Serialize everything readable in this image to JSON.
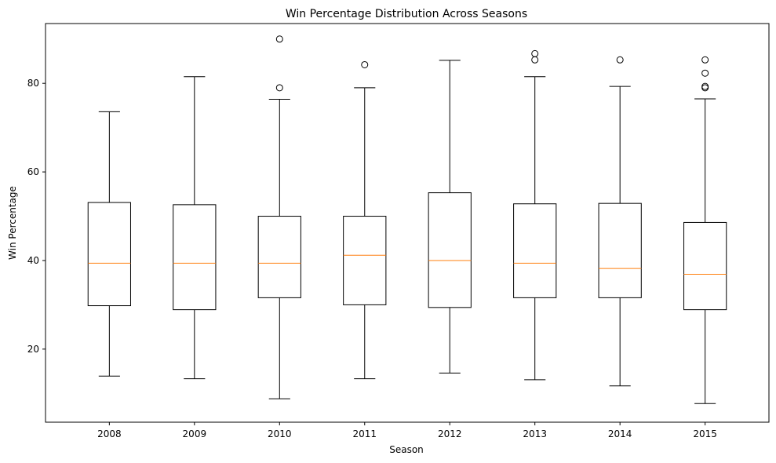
{
  "chart_data": {
    "type": "boxplot",
    "title": "Win Percentage Distribution Across Seasons",
    "xlabel": "Season",
    "ylabel": "Win Percentage",
    "ylim": [
      3.5,
      93.5
    ],
    "yticks": [
      20,
      40,
      60,
      80
    ],
    "grid": false,
    "legend": "none",
    "colors": {
      "box": "#000000",
      "median": "#ff7f0e",
      "background": "#ffffff"
    },
    "categories": [
      "2008",
      "2009",
      "2010",
      "2011",
      "2012",
      "2013",
      "2014",
      "2015"
    ],
    "boxes": [
      {
        "season": "2008",
        "whisker_low": 13.9,
        "q1": 29.8,
        "median": 39.4,
        "q3": 53.1,
        "whisker_high": 73.6,
        "outliers": []
      },
      {
        "season": "2009",
        "whisker_low": 13.3,
        "q1": 28.9,
        "median": 39.4,
        "q3": 52.6,
        "whisker_high": 81.5,
        "outliers": []
      },
      {
        "season": "2010",
        "whisker_low": 8.8,
        "q1": 31.6,
        "median": 39.4,
        "q3": 50.0,
        "whisker_high": 76.4,
        "outliers": [
          79.0,
          90.0
        ]
      },
      {
        "season": "2011",
        "whisker_low": 13.3,
        "q1": 30.0,
        "median": 41.2,
        "q3": 50.0,
        "whisker_high": 79.0,
        "outliers": [
          84.2
        ]
      },
      {
        "season": "2012",
        "whisker_low": 14.6,
        "q1": 29.4,
        "median": 40.0,
        "q3": 55.3,
        "whisker_high": 85.2,
        "outliers": []
      },
      {
        "season": "2013",
        "whisker_low": 13.1,
        "q1": 31.6,
        "median": 39.4,
        "q3": 52.8,
        "whisker_high": 81.5,
        "outliers": [
          85.3,
          86.7
        ]
      },
      {
        "season": "2014",
        "whisker_low": 11.7,
        "q1": 31.6,
        "median": 38.2,
        "q3": 52.9,
        "whisker_high": 79.3,
        "outliers": [
          85.3
        ]
      },
      {
        "season": "2015",
        "whisker_low": 7.7,
        "q1": 28.9,
        "median": 36.9,
        "q3": 48.6,
        "whisker_high": 76.5,
        "outliers": [
          79.0,
          79.3,
          82.3,
          85.3
        ]
      }
    ]
  }
}
